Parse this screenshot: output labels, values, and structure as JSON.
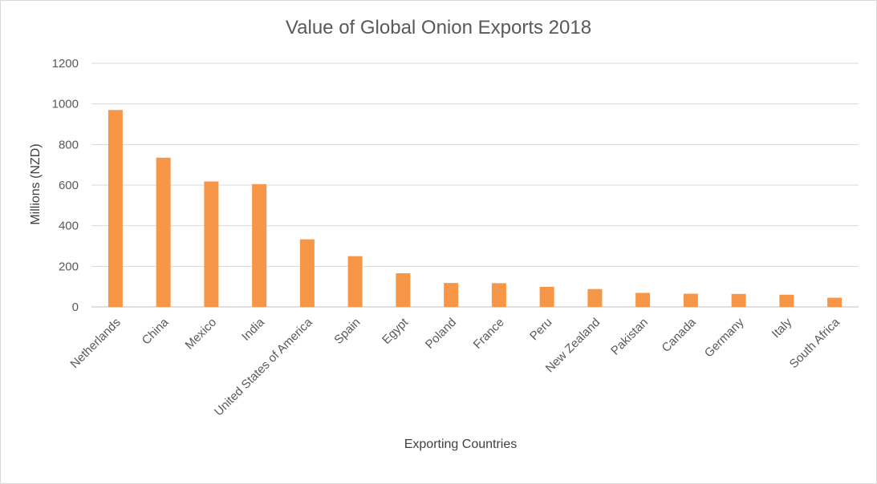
{
  "chart_data": {
    "type": "bar",
    "title": "Value of Global Onion Exports 2018",
    "xlabel": "Exporting Countries",
    "ylabel": "Millions (NZD)",
    "ylim": [
      0,
      1200
    ],
    "yticks": [
      0,
      200,
      400,
      600,
      800,
      1000,
      1200
    ],
    "grid": true,
    "bar_color": "#F79646",
    "categories": [
      "Netherlands",
      "China",
      "Mexico",
      "India",
      "United States of America",
      "Spain",
      "Egypt",
      "Poland",
      "France",
      "Peru",
      "New Zealand",
      "Pakistan",
      "Canada",
      "Germany",
      "Italy",
      "South Africa"
    ],
    "values": [
      970,
      735,
      618,
      605,
      333,
      250,
      166,
      118,
      117,
      99,
      88,
      69,
      65,
      64,
      60,
      45
    ]
  }
}
